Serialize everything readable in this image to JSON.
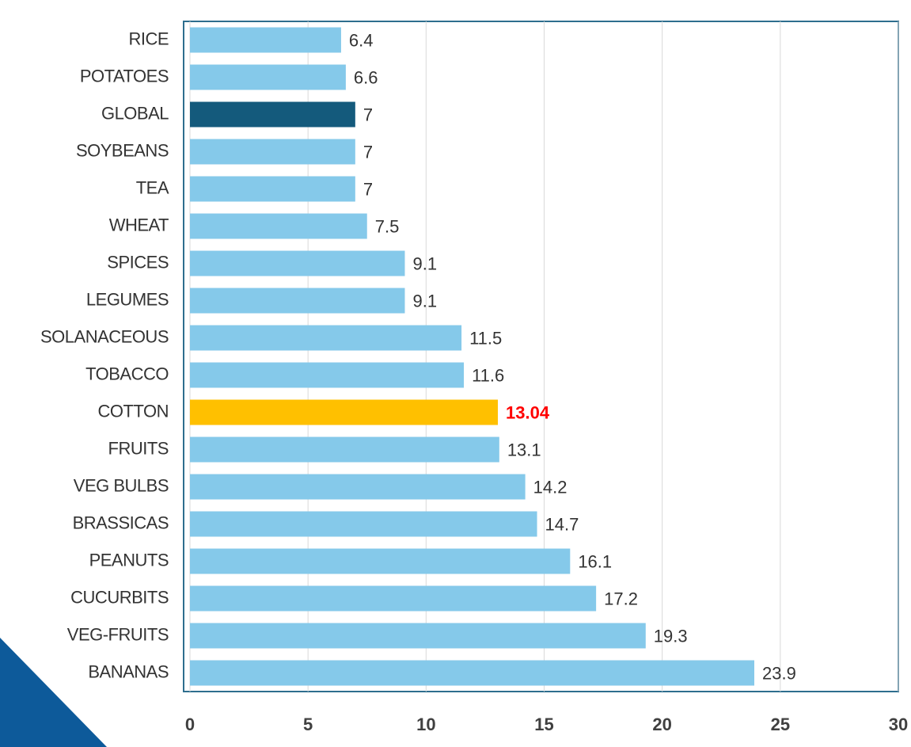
{
  "chart_data": {
    "type": "hbar",
    "categories": [
      "RICE",
      "POTATOES",
      "GLOBAL",
      "SOYBEANS",
      "TEA",
      "WHEAT",
      "SPICES",
      "LEGUMES",
      "SOLANACEOUS",
      "TOBACCO",
      "COTTON",
      "FRUITS",
      "VEG BULBS",
      "BRASSICAS",
      "PEANUTS",
      "CUCURBITS",
      "VEG-FRUITS",
      "BANANAS"
    ],
    "values": [
      6.4,
      6.6,
      7,
      7,
      7,
      7.5,
      9.1,
      9.1,
      11.5,
      11.6,
      13.04,
      13.1,
      14.2,
      14.7,
      16.1,
      17.2,
      19.3,
      23.9
    ],
    "colors": [
      "#85c9ea",
      "#85c9ea",
      "#145a7c",
      "#85c9ea",
      "#85c9ea",
      "#85c9ea",
      "#85c9ea",
      "#85c9ea",
      "#85c9ea",
      "#85c9ea",
      "#ffc000",
      "#85c9ea",
      "#85c9ea",
      "#85c9ea",
      "#85c9ea",
      "#85c9ea",
      "#85c9ea",
      "#85c9ea"
    ],
    "value_label_colors": [
      "#333333",
      "#333333",
      "#333333",
      "#333333",
      "#333333",
      "#333333",
      "#333333",
      "#333333",
      "#333333",
      "#333333",
      "#ff0000",
      "#333333",
      "#333333",
      "#333333",
      "#333333",
      "#333333",
      "#333333",
      "#333333"
    ],
    "xlim": [
      0,
      30
    ],
    "xticks": [
      0,
      5,
      10,
      15,
      20,
      25,
      30
    ],
    "grid": true
  }
}
